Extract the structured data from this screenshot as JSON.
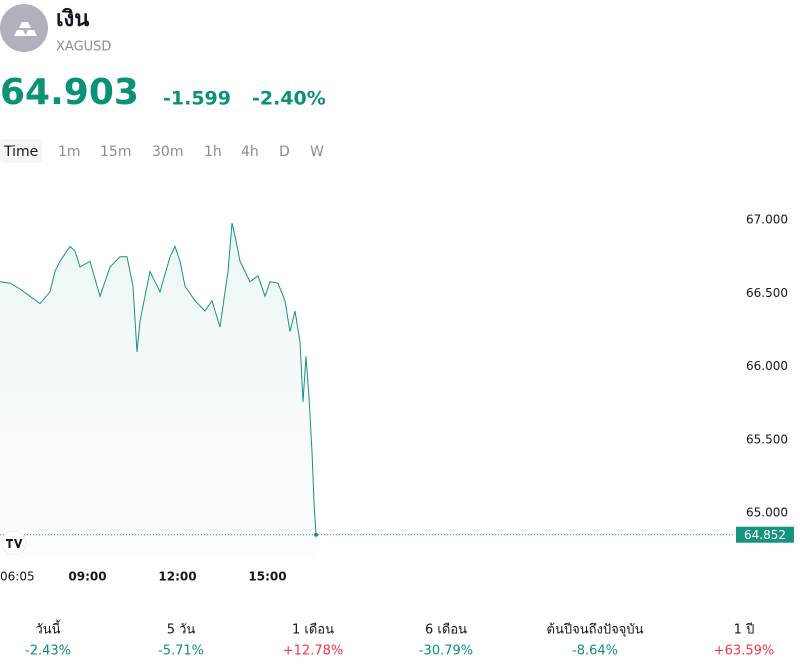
{
  "header": {
    "name": "เงิน",
    "symbol": "XAGUSD"
  },
  "quote": {
    "price": "64.903",
    "change": "-1.599",
    "change_percent": "-2.40%",
    "color": "#0c9179"
  },
  "timeframes": [
    "Time",
    "1m",
    "15m",
    "30m",
    "1h",
    "4h",
    "D",
    "W"
  ],
  "chart_data": {
    "type": "line",
    "x": [
      "06:05",
      "06:25",
      "06:45",
      "07:05",
      "07:25",
      "07:45",
      "07:55",
      "08:05",
      "08:25",
      "08:35",
      "08:45",
      "09:05",
      "09:25",
      "09:35",
      "09:45",
      "10:05",
      "10:19",
      "10:31",
      "10:39",
      "10:45",
      "10:55",
      "11:05",
      "11:15",
      "11:25",
      "11:45",
      "11:55",
      "12:05",
      "12:15",
      "12:35",
      "12:55",
      "13:09",
      "13:25",
      "13:35",
      "13:41",
      "13:49",
      "13:57",
      "14:05",
      "14:15",
      "14:25",
      "14:41",
      "14:55",
      "15:05",
      "15:21",
      "15:35",
      "15:45",
      "15:55",
      "16:05",
      "16:11",
      "16:17",
      "16:23",
      "16:29",
      "16:33",
      "16:37"
    ],
    "series": [
      {
        "name": "XAGUSD",
        "color": "#17937f",
        "values": [
          66.58,
          66.57,
          66.53,
          66.48,
          66.43,
          66.51,
          66.65,
          66.72,
          66.82,
          66.79,
          66.68,
          66.72,
          66.48,
          66.58,
          66.68,
          66.75,
          66.75,
          66.55,
          66.1,
          66.31,
          66.48,
          66.65,
          66.58,
          66.51,
          66.75,
          66.82,
          66.72,
          66.55,
          66.45,
          66.38,
          66.45,
          66.27,
          66.51,
          66.65,
          66.98,
          66.86,
          66.72,
          66.65,
          66.58,
          66.62,
          66.48,
          66.58,
          66.57,
          66.45,
          66.24,
          66.38,
          66.17,
          65.76,
          66.07,
          65.79,
          65.42,
          65.08,
          64.852
        ]
      }
    ],
    "xlim": [
      "06:05",
      "16:37"
    ],
    "xticks": [
      "06:05",
      "09:00",
      "12:00",
      "15:00"
    ],
    "ylim": [
      64.7,
      67.206
    ],
    "yticks": [
      {
        "value": 65,
        "label": "65.000"
      },
      {
        "value": 65.5,
        "label": "65.500"
      },
      {
        "value": 66,
        "label": "66.000"
      },
      {
        "value": 66.5,
        "label": "66.500"
      },
      {
        "value": 67,
        "label": "67.000"
      }
    ]
  },
  "performance": [
    {
      "label": "วันนี้",
      "value": "-2.43%",
      "color": "#0c9179"
    },
    {
      "label": "5 วัน",
      "value": "-5.71%",
      "color": "#0c9179"
    },
    {
      "label": "1 เดือน",
      "value": "+12.78%",
      "color": "#f23645"
    },
    {
      "label": "6 เดือน",
      "value": "-30.79%",
      "color": "#0c9179"
    },
    {
      "label": "ต้นปีจนถึงปัจจุบัน",
      "value": "-8.64%",
      "color": "#0c9179"
    },
    {
      "label": "1 ปี",
      "value": "+63.59%",
      "color": "#f23645"
    }
  ]
}
